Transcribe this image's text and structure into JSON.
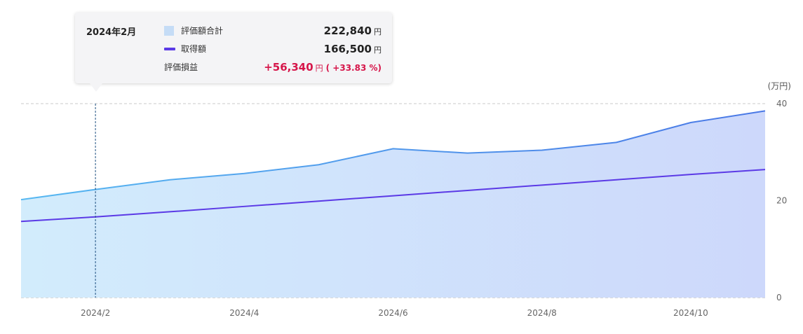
{
  "tooltip": {
    "date": "2024年2月",
    "rows": [
      {
        "label": "評価額合計",
        "value": "222,840",
        "unit": "円"
      },
      {
        "label": "取得額",
        "value": "166,500",
        "unit": "円"
      },
      {
        "label": "評価損益",
        "value": "+56,340",
        "unit": "円",
        "pct": "( +33.83 %)"
      }
    ]
  },
  "chart_data": {
    "type": "area",
    "x": [
      "2024/1",
      "2024/2",
      "2024/3",
      "2024/4",
      "2024/5",
      "2024/6",
      "2024/7",
      "2024/8",
      "2024/9",
      "2024/10",
      "2024/11"
    ],
    "x_tick_labels": [
      "2024/2",
      "2024/4",
      "2024/6",
      "2024/8",
      "2024/10"
    ],
    "series": [
      {
        "name": "評価額合計",
        "kind": "area",
        "values": [
          20.2,
          22.3,
          24.3,
          25.6,
          27.4,
          30.7,
          29.8,
          30.4,
          32.0,
          36.1,
          38.5
        ]
      },
      {
        "name": "取得額",
        "kind": "line",
        "values": [
          15.7,
          16.65,
          17.7,
          18.8,
          19.9,
          21.0,
          22.1,
          23.2,
          24.3,
          25.4,
          26.4
        ]
      }
    ],
    "y_unit_label": "(万円)",
    "y_ticks": [
      0,
      20,
      40
    ],
    "ylim": [
      0,
      40
    ],
    "grid": true,
    "legend": "tooltip",
    "highlighted_x": "2024/2",
    "colors": {
      "area_top": "#c7e3f8",
      "area_bottom": "#cdd6fb",
      "area_line": "#4a8be9",
      "cost_line": "#5b3ae6",
      "gain": "#d6164a",
      "grid": "#c9c9c9"
    }
  }
}
